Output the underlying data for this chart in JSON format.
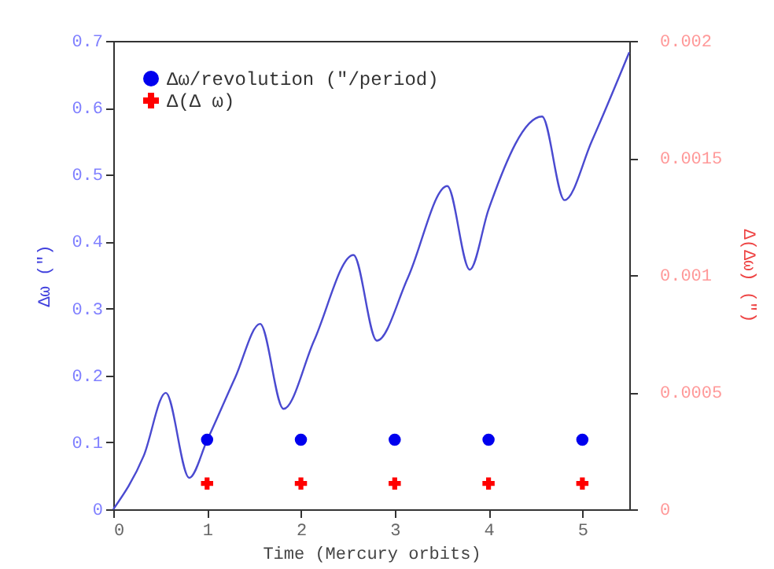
{
  "chart_data": {
    "type": "line",
    "xlabel": "Time (Mercury orbits)",
    "ylabel": "Δω (\")",
    "y2label": "Δ(Δω) (\")",
    "x": [
      0,
      0.325,
      0.56,
      0.81,
      1.0,
      1.3,
      1.565,
      1.815,
      2.14,
      2.56,
      2.81,
      3.14,
      3.56,
      3.8,
      4.0,
      4.57,
      4.81,
      5.1,
      5.5
    ],
    "series": [
      {
        "color": "#4a4ad0",
        "values": [
          0,
          0.08,
          0.174,
          0.047,
          0.103,
          0.197,
          0.277,
          0.15,
          0.252,
          0.38,
          0.252,
          0.346,
          0.483,
          0.358,
          0.448,
          0.587,
          0.462,
          0.55,
          0.683
        ]
      },
      {
        "type": "scatter",
        "name": "Δω/revolution (\"/period)",
        "color": "#0000ee",
        "marker": "circle",
        "x": [
          1,
          2,
          3,
          4,
          5
        ],
        "values": [
          0.104,
          0.104,
          0.104,
          0.104,
          0.104
        ]
      },
      {
        "type": "scatter",
        "name": "Δ(Δ ω)",
        "color": "#ff0000",
        "marker": "cross",
        "axis": "y2",
        "x": [
          1,
          2,
          3,
          4,
          5
        ],
        "values": [
          0.00011,
          0.00011,
          0.00011,
          0.00011,
          0.00011
        ]
      }
    ],
    "xlim": [
      0,
      5.5
    ],
    "xticks": [
      0,
      1,
      2,
      3,
      4,
      5
    ],
    "ylim": [
      0,
      0.7
    ],
    "yticks": [
      0,
      0.1,
      0.2,
      0.3,
      0.4,
      0.5,
      0.6,
      0.7
    ],
    "y2lim": [
      0,
      0.002
    ],
    "y2ticks": [
      0,
      0.0005,
      0.001,
      0.0015,
      0.002
    ],
    "legend": "top left",
    "grid": false
  }
}
